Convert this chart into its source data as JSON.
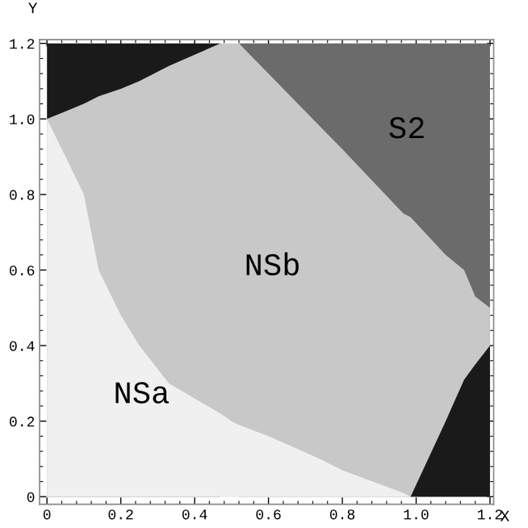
{
  "chart_data": {
    "type": "area",
    "xlabel": "X",
    "ylabel": "Y",
    "series": [
      {
        "name": "S2",
        "color": "#6b6b6b",
        "x": [
          0.52,
          1.2
        ],
        "values": [
          1.2,
          1.2
        ]
      },
      {
        "color": "#1a1a1a",
        "x": [
          0,
          0.47
        ],
        "values": [
          1.2,
          1.2
        ]
      },
      {
        "name": "NSb",
        "color": "#c8c8c8",
        "x": [
          0,
          0.05,
          0.1,
          0.14,
          0.2,
          0.25,
          0.33,
          0.4,
          0.47,
          0.5,
          0.52,
          0.6,
          0.74,
          0.8,
          0.965,
          0.985,
          1.08,
          1.13,
          1.16,
          1.2
        ],
        "values": [
          1.0,
          1.02,
          1.04,
          1.06,
          1.08,
          1.1,
          1.14,
          1.17,
          1.2,
          1.2,
          1.2,
          1.12,
          0.98,
          0.92,
          0.75,
          0.74,
          0.64,
          0.6,
          0.53,
          0.5
        ]
      },
      {
        "name": "NSa",
        "color": "#f0f0f0",
        "x": [
          0,
          0.05,
          0.1,
          0.14,
          0.2,
          0.25,
          0.33,
          0.4,
          0.47,
          0.5,
          0.52,
          0.6,
          0.74,
          0.8,
          0.965,
          0.985
        ],
        "values": [
          1.0,
          0.9,
          0.8,
          0.6,
          0.48,
          0.4,
          0.3,
          0.26,
          0.22,
          0.2,
          0.19,
          0.16,
          0.1,
          0.07,
          0.01,
          0
        ]
      },
      {
        "color": "#1a1a1a",
        "x": [
          0.985,
          1.08,
          1.13,
          1.16,
          1.2
        ],
        "values": [
          0,
          0.2,
          0.31,
          0.35,
          0.4
        ]
      }
    ],
    "xlim": [
      -0.02,
      1.21
    ],
    "ylim": [
      -0.02,
      1.21
    ],
    "xticks": [
      0,
      0.2,
      0.4,
      0.6,
      0.8,
      {
        "value": 1,
        "label": "1.0"
      },
      {
        "value": 1.2,
        "label": "1.2"
      }
    ],
    "yticks": [
      0,
      0.2,
      0.4,
      0.6,
      0.8,
      {
        "value": 1,
        "label": "1.0"
      },
      {
        "value": 1.2,
        "label": "1.2"
      }
    ]
  }
}
